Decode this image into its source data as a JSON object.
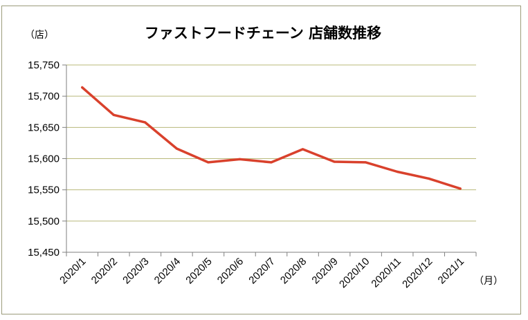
{
  "chart_data": {
    "type": "line",
    "title": "ファストフードチェーン 店舗数推移",
    "y_unit": "（店）",
    "x_unit": "（月）",
    "categories": [
      "2020/1",
      "2020/2",
      "2020/3",
      "2020/4",
      "2020/5",
      "2020/6",
      "2020/7",
      "2020/8",
      "2020/9",
      "2020/10",
      "2020/11",
      "2020/12",
      "2021/1"
    ],
    "series": [
      {
        "values": [
          15714,
          15670,
          15658,
          15616,
          15594,
          15599,
          15594,
          15615,
          15595,
          15594,
          15579,
          15568,
          15552
        ]
      }
    ],
    "yticks": [
      "15,450",
      "15,500",
      "15,550",
      "15,600",
      "15,650",
      "15,700",
      "15,750"
    ],
    "ylim": [
      15450,
      15750
    ],
    "grid": true,
    "colors": {
      "line": "#d9412c",
      "grid": "#b8b87a",
      "axis": "#7f7f7f",
      "frame": "#9b9b7a"
    }
  }
}
